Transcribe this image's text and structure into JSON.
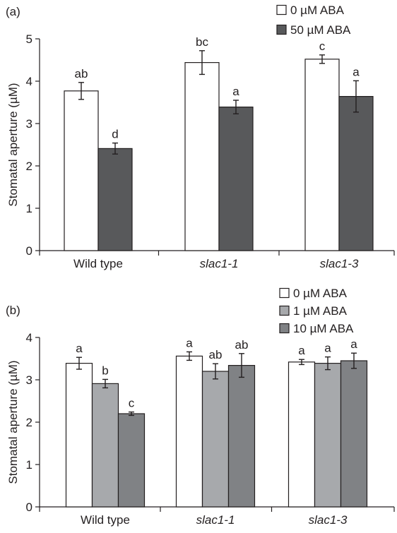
{
  "chart_data": [
    {
      "type": "bar",
      "panel_label": "(a)",
      "categories": [
        "Wild type",
        "slac1-1",
        "slac1-3"
      ],
      "categories_italic": [
        false,
        true,
        true
      ],
      "ylabel": "Stomatal aperture (µM)",
      "ylim": [
        0,
        5
      ],
      "yticks": [
        "0",
        "1",
        "2",
        "3",
        "4",
        "5"
      ],
      "grid": false,
      "legend_position": "top-right",
      "series": [
        {
          "name": "0 µM ABA",
          "color": "#ffffff",
          "values": [
            3.77,
            4.44,
            4.52
          ],
          "errors": [
            0.2,
            0.28,
            0.1
          ],
          "letters": [
            "ab",
            "bc",
            "c"
          ]
        },
        {
          "name": "50 µM ABA",
          "color": "#58595b",
          "values": [
            2.41,
            3.39,
            3.64
          ],
          "errors": [
            0.13,
            0.16,
            0.37
          ],
          "letters": [
            "d",
            "a",
            "a"
          ]
        }
      ]
    },
    {
      "type": "bar",
      "panel_label": "(b)",
      "categories": [
        "Wild type",
        "slac1-1",
        "slac1-3"
      ],
      "categories_italic": [
        false,
        true,
        true
      ],
      "ylabel": "Stomatal aperture (µM)",
      "ylim": [
        0,
        4
      ],
      "yticks": [
        "0",
        "1",
        "2",
        "3",
        "4"
      ],
      "grid": false,
      "legend_position": "top-right",
      "series": [
        {
          "name": "0 µM ABA",
          "color": "#ffffff",
          "values": [
            3.39,
            3.56,
            3.42
          ],
          "errors": [
            0.14,
            0.1,
            0.06
          ],
          "letters": [
            "a",
            "a",
            "a"
          ]
        },
        {
          "name": "1 µM ABA",
          "color": "#a7a9ac",
          "values": [
            2.91,
            3.2,
            3.39
          ],
          "errors": [
            0.1,
            0.18,
            0.15
          ],
          "letters": [
            "b",
            "ab",
            "a"
          ]
        },
        {
          "name": "10 µM ABA",
          "color": "#808285",
          "values": [
            2.2,
            3.34,
            3.45
          ],
          "errors": [
            0.04,
            0.28,
            0.18
          ],
          "letters": [
            "c",
            "ab",
            "a"
          ]
        }
      ]
    }
  ]
}
